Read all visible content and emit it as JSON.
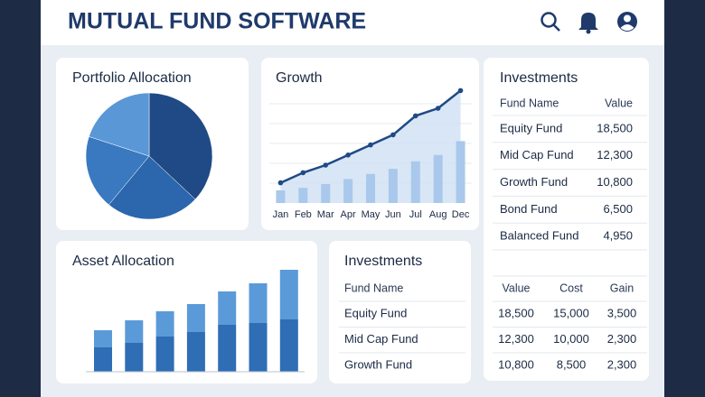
{
  "header": {
    "title": "MUTUAL FUND SOFTWARE"
  },
  "portfolio_allocation": {
    "type": "pie",
    "title": "Portfolio Allocation",
    "values": [
      37,
      24,
      19,
      20
    ],
    "colors": [
      "#1f4a85",
      "#2c66ad",
      "#3a79c0",
      "#5a97d6"
    ]
  },
  "growth": {
    "type": "line",
    "title": "Growth",
    "categories": [
      "Jan",
      "Feb",
      "Mar",
      "Apr",
      "May",
      "Jun",
      "Jul",
      "Aug",
      "Dec"
    ],
    "ylim": [
      0,
      100
    ],
    "line": {
      "color": "#1f4a85",
      "values": [
        16,
        24,
        30,
        38,
        46,
        54,
        69,
        75,
        89
      ]
    },
    "bars": {
      "color": "#a9c8ec",
      "values": [
        10,
        12,
        15,
        19,
        23,
        27,
        33,
        38,
        49
      ]
    },
    "area_color": "#cfe0f4"
  },
  "investments_table": {
    "title": "Investments",
    "columns": [
      "Fund Name",
      "Value"
    ],
    "rows": [
      [
        "Equity Fund",
        "18,500"
      ],
      [
        "Mid Cap Fund",
        "12,300"
      ],
      [
        "Growth Fund",
        "10,800"
      ],
      [
        "Bond Fund",
        "6,500"
      ],
      [
        "Balanced Fund",
        "4,950"
      ]
    ]
  },
  "gain_table": {
    "columns": [
      "Value",
      "Cost",
      "Gain"
    ],
    "rows": [
      [
        "18,500",
        "15,000",
        "3,500"
      ],
      [
        "12,300",
        "10,000",
        "2,300"
      ],
      [
        "10,800",
        "8,500",
        "2,300"
      ]
    ]
  },
  "asset_allocation": {
    "type": "bar",
    "stacked": true,
    "title": "Asset Allocation",
    "ylim": [
      0,
      120
    ],
    "series": [
      {
        "color": "#2f6db5",
        "values": [
          27,
          32,
          39,
          44,
          52,
          54,
          58
        ]
      },
      {
        "color": "#5b9ad8",
        "values": [
          19,
          25,
          28,
          31,
          37,
          44,
          55
        ]
      }
    ]
  },
  "investments_list": {
    "title": "Investments",
    "columns": [
      "Fund Name"
    ],
    "rows": [
      [
        "Equity Fund"
      ],
      [
        "Mid Cap Fund"
      ],
      [
        "Growth Fund"
      ]
    ]
  }
}
